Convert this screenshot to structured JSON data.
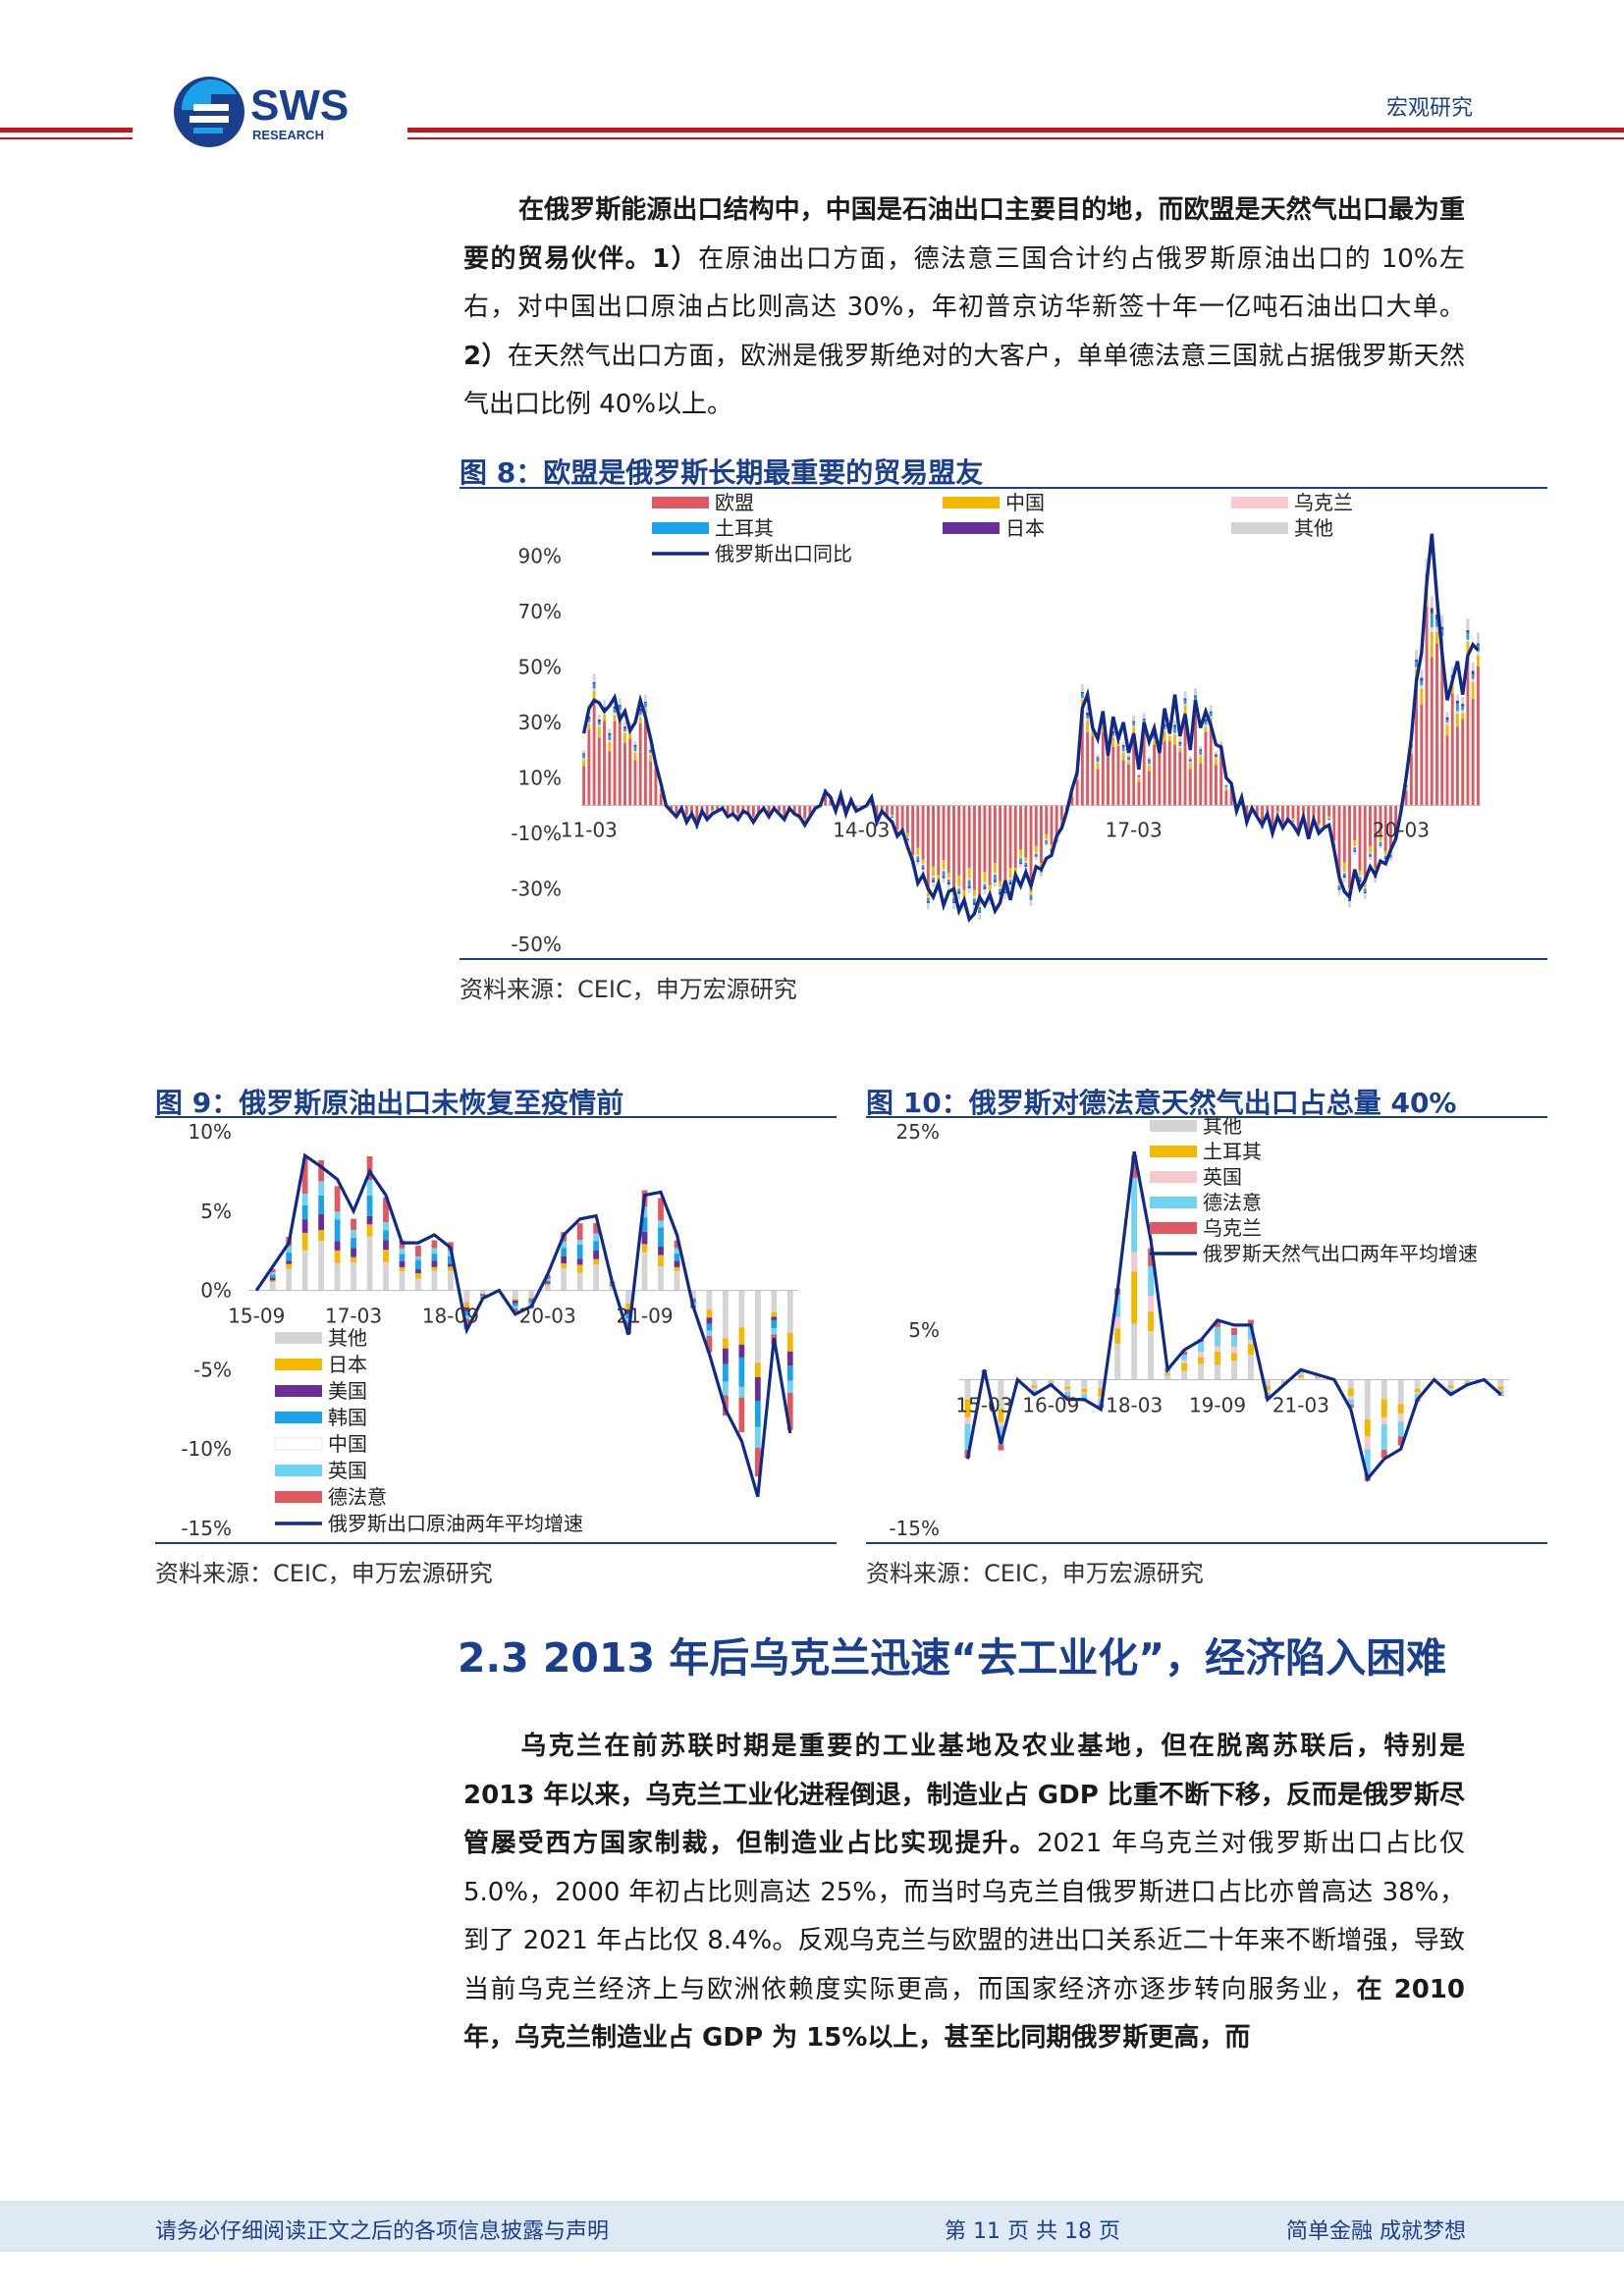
{
  "header": {
    "logo_text": "SWS",
    "logo_sub": "RESEARCH",
    "category": "宏观研究"
  },
  "para1": {
    "b1": "在俄罗斯能源出口结构中，中国是石油出口主要目的地，而欧盟是天然气出口最为重要的贸易伙伴。1）",
    "t1": "在原油出口方面，德法意三国合计约占俄罗斯原油出口的 10%左右，对中国出口原油占比则高达 30%，年初普京访华新签十年一亿吨石油出口大单。",
    "b2": "2）",
    "t2": "在天然气出口方面，欧洲是俄罗斯绝对的大客户，单单德法意三国就占据俄罗斯天然气出口比例 40%以上。"
  },
  "fig8": {
    "title": "图 8：欧盟是俄罗斯长期最重要的贸易盟友",
    "source": "资料来源：CEIC，申万宏源研究"
  },
  "fig9": {
    "title": "图 9：俄罗斯原油出口未恢复至疫情前",
    "source": "资料来源：CEIC，申万宏源研究"
  },
  "fig10": {
    "title": "图 10：俄罗斯对德法意天然气出口占总量 40%",
    "source": "资料来源：CEIC，申万宏源研究"
  },
  "section": {
    "title": "2.3 2013 年后乌克兰迅速“去工业化”，经济陷入困难"
  },
  "para2": {
    "b1": "乌克兰在前苏联时期是重要的工业基地及农业基地，但在脱离苏联后，特别是 2013 年以来，乌克兰工业化进程倒退，制造业占 GDP 比重不断下移，反而是俄罗斯尽管屡受西方国家制裁，但制造业占比实现提升。",
    "t1": "2021 年乌克兰对俄罗斯出口占比仅 5.0%，2000 年初占比则高达 25%，而当时乌克兰自俄罗斯进口占比亦曾高达 38%，到了 2021 年占比仅 8.4%。反观乌克兰与欧盟的进出口关系近二十年来不断增强，导致当前乌克兰经济上与欧洲依赖度实际更高，而国家经济亦逐步转向服务业，",
    "b2": "在 2010 年，乌克兰制造业占 GDP 为 15%以上，甚至比同期俄罗斯更高，而"
  },
  "footer": {
    "left": "请务必仔细阅读正文之后的各项信息披露与声明",
    "center": "第 11 页 共 18 页",
    "right": "简单金融 成就梦想"
  },
  "chart_data": [
    {
      "type": "bar",
      "stacked": true,
      "x_ticks": [
        "11-03",
        "14-03",
        "17-03",
        "20-03"
      ],
      "yticks": [
        "90%",
        "70%",
        "50%",
        "30%",
        "10%",
        "-10%",
        "-30%",
        "-50%"
      ],
      "ylim": [
        -50,
        100
      ],
      "legend_position": "top",
      "series": [
        {
          "name": "欧盟",
          "color": "#e0595e"
        },
        {
          "name": "中国",
          "color": "#f5b800"
        },
        {
          "name": "乌克兰",
          "color": "#f7c9cf"
        },
        {
          "name": "土耳其",
          "color": "#1aa3e8"
        },
        {
          "name": "日本",
          "color": "#6a2d9a"
        },
        {
          "name": "其他",
          "color": "#d4d4d4"
        },
        {
          "name": "俄罗斯出口同比",
          "color": "#0f2a8a",
          "line": true,
          "values": [
            26,
            35,
            38,
            37,
            34,
            36,
            39,
            31,
            34,
            27,
            30,
            38,
            32,
            24,
            15,
            8,
            0,
            -2,
            -4,
            -1,
            -6,
            -3,
            -7,
            -2,
            -5,
            -3,
            -2,
            -1,
            -4,
            -3,
            -5,
            -2,
            -3,
            -6,
            -3,
            -1,
            -4,
            -1,
            -3,
            -5,
            -1,
            -3,
            -4,
            -7,
            -4,
            -1,
            0,
            5,
            3,
            -2,
            4,
            -3,
            2,
            -2,
            -1,
            0,
            3,
            -6,
            -2,
            -4,
            -6,
            -11,
            -9,
            -15,
            -20,
            -28,
            -25,
            -30,
            -33,
            -28,
            -36,
            -31,
            -30,
            -38,
            -34,
            -41,
            -39,
            -33,
            -36,
            -32,
            -38,
            -35,
            -27,
            -34,
            -25,
            -29,
            -24,
            -29,
            -22,
            -23,
            -19,
            -18,
            -11,
            -8,
            -2,
            6,
            12,
            35,
            40,
            28,
            24,
            34,
            18,
            32,
            24,
            30,
            19,
            26,
            13,
            30,
            23,
            28,
            19,
            35,
            26,
            40,
            25,
            33,
            20,
            38,
            28,
            34,
            29,
            22,
            21,
            10,
            8,
            -2,
            3,
            -6,
            -1,
            -4,
            -7,
            -3,
            -10,
            -4,
            -8,
            -5,
            -7,
            -10,
            -4,
            -12,
            -5,
            -10,
            -8,
            -7,
            -16,
            -26,
            -31,
            -33,
            -23,
            -30,
            -27,
            -22,
            -25,
            -20,
            -21,
            -16,
            -12,
            -2,
            10,
            24,
            45,
            55,
            80,
            98,
            75,
            55,
            38,
            45,
            52,
            40,
            54,
            58,
            56
          ]
        }
      ]
    },
    {
      "type": "bar",
      "stacked": true,
      "x_ticks": [
        "15-09",
        "17-03",
        "18-09",
        "20-03",
        "21-09"
      ],
      "yticks": [
        "10%",
        "5%",
        "0%",
        "-5%",
        "-10%",
        "-15%"
      ],
      "ylim": [
        -15,
        10
      ],
      "legend_position": "bottom-left",
      "series": [
        {
          "name": "其他",
          "color": "#d4d4d4"
        },
        {
          "name": "日本",
          "color": "#f5b800"
        },
        {
          "name": "美国",
          "color": "#6a2d9a"
        },
        {
          "name": "韩国",
          "color": "#1aa3e8"
        },
        {
          "name": "中国",
          "color": "#ffffff"
        },
        {
          "name": "英国",
          "color": "#6fd3f2"
        },
        {
          "name": "德法意",
          "color": "#e0595e"
        },
        {
          "name": "俄罗斯出口原油两年平均增速",
          "color": "#0f2a8a",
          "line": true,
          "values": [
            0,
            1.5,
            3,
            8.5,
            7.8,
            7,
            5,
            7.5,
            6,
            3,
            3,
            3.5,
            2.7,
            -2.5,
            -0.5,
            0,
            -1.5,
            -1,
            1,
            3.5,
            4.5,
            4.7,
            0.5,
            -2.8,
            6,
            6.2,
            3.5,
            -1,
            -4,
            -7.5,
            -9.5,
            -13,
            -3,
            -9
          ]
        }
      ]
    },
    {
      "type": "bar",
      "stacked": true,
      "x_ticks": [
        "15-03",
        "16-09",
        "18-03",
        "19-09",
        "21-03"
      ],
      "yticks": [
        "25%",
        "5%",
        "-15%"
      ],
      "ylim": [
        -15,
        25
      ],
      "legend_position": "top",
      "series": [
        {
          "name": "其他",
          "color": "#d4d4d4"
        },
        {
          "name": "土耳其",
          "color": "#f5b800"
        },
        {
          "name": "英国",
          "color": "#f7c9cf"
        },
        {
          "name": "德法意",
          "color": "#6fd3f2"
        },
        {
          "name": "乌克兰",
          "color": "#e0595e"
        },
        {
          "name": "俄罗斯天然气出口两年平均增速",
          "color": "#0f2a8a",
          "line": true,
          "values": [
            -8,
            1,
            -6.5,
            0,
            -1.5,
            -0.5,
            -2,
            -2,
            -3,
            9,
            23,
            14,
            1,
            3,
            4,
            6,
            5.5,
            5.5,
            -2,
            -0.5,
            1,
            0.5,
            0,
            -3,
            -10,
            -8,
            -7,
            -2,
            0,
            -1.5,
            -0.5,
            0,
            -1.5
          ]
        }
      ]
    }
  ]
}
